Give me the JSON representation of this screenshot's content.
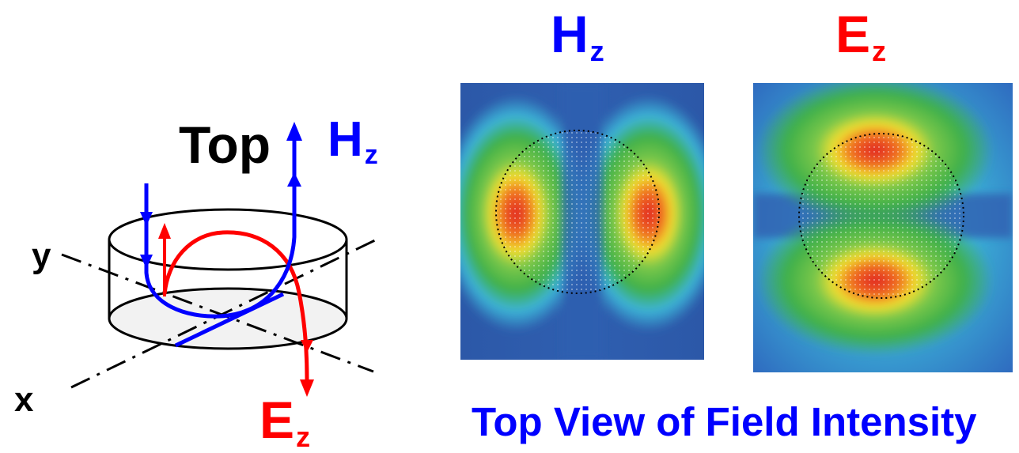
{
  "diagram": {
    "label_top": "Top",
    "label_y": "y",
    "label_x": "x",
    "hz_label": {
      "main": "H",
      "sub": "z"
    },
    "ez_label": {
      "main": "E",
      "sub": "z"
    }
  },
  "panels": {
    "hz_title": {
      "main": "H",
      "sub": "z"
    },
    "ez_title": {
      "main": "E",
      "sub": "z"
    },
    "caption": "Top View of Field Intensity"
  },
  "colors": {
    "hz": "#0000ff",
    "ez": "#ff0000",
    "text": "#000000",
    "field_low": "#2f5fb0",
    "field_mid": "#3fb04a",
    "field_high": "#e02020"
  }
}
